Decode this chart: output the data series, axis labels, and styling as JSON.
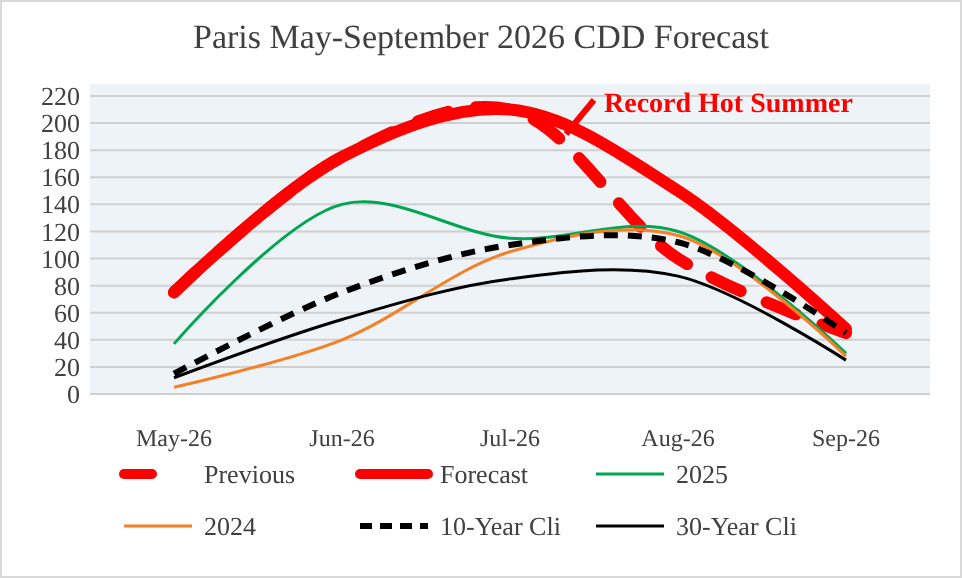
{
  "chart_data": {
    "type": "line",
    "title": "Paris May-September 2026 CDD Forecast",
    "categories": [
      "May-26",
      "Jun-26",
      "Jul-26",
      "Aug-26",
      "Sep-26"
    ],
    "series": [
      {
        "name": "Previous",
        "color": "#ff0000",
        "line_style": "dashed",
        "values": [
          75,
          175,
          210,
          100,
          45
        ]
      },
      {
        "name": "Forecast",
        "color": "#ff0000",
        "line_style": "solid",
        "values": [
          75,
          175,
          210,
          150,
          48
        ]
      },
      {
        "name": "2025",
        "color": "#00a651",
        "line_style": "solid",
        "values": [
          37,
          140,
          115,
          120,
          30
        ]
      },
      {
        "name": "2024",
        "color": "#f58025",
        "line_style": "solid",
        "values": [
          5,
          40,
          105,
          117,
          28
        ]
      },
      {
        "name": "10-Year Cli",
        "color": "#000000",
        "line_style": "dashed",
        "values": [
          15,
          75,
          110,
          112,
          45
        ]
      },
      {
        "name": "30-Year Cli",
        "color": "#000000",
        "line_style": "solid",
        "values": [
          12,
          55,
          85,
          87,
          25
        ]
      }
    ],
    "ylim": [
      0,
      220
    ],
    "yticks": [
      0,
      20,
      40,
      60,
      80,
      100,
      120,
      140,
      160,
      180,
      200,
      220
    ],
    "grid": "y",
    "legend": "bottom",
    "marker": "none",
    "annotations": [
      "Record Hot Summer"
    ]
  }
}
